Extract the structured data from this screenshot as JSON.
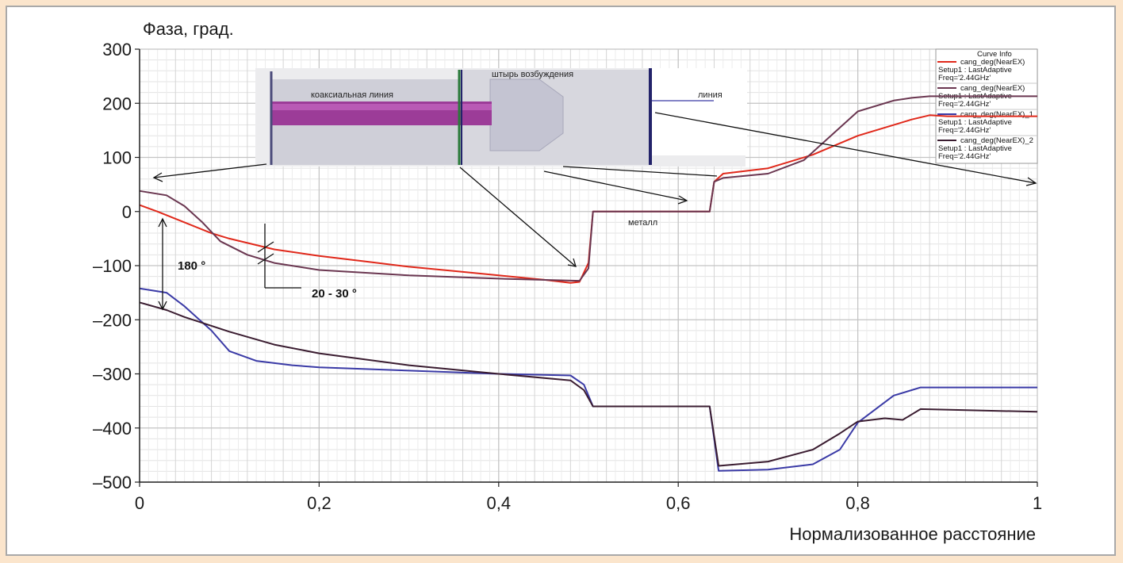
{
  "chart_data": {
    "type": "line",
    "ylabel": "Фаза, град.",
    "xlabel": "Нормализованное расстояние",
    "xlim": [
      0,
      1
    ],
    "ylim": [
      -500,
      300
    ],
    "xticks": [
      "0",
      "0,2",
      "0,4",
      "0,6",
      "0,8",
      "1"
    ],
    "yticks": [
      "300",
      "200",
      "100",
      "0",
      "–100",
      "–200",
      "–300",
      "–400",
      "–500"
    ],
    "xtick_values": [
      0,
      0.2,
      0.4,
      0.6,
      0.8,
      1
    ],
    "ytick_values": [
      300,
      200,
      100,
      0,
      -100,
      -200,
      -300,
      -400,
      -500
    ],
    "grid": true,
    "series": [
      {
        "color": "#e0281a",
        "x": [
          0,
          0.02,
          0.05,
          0.08,
          0.1,
          0.15,
          0.2,
          0.25,
          0.3,
          0.35,
          0.4,
          0.45,
          0.48,
          0.49,
          0.5,
          0.505,
          0.55,
          0.6,
          0.635,
          0.64,
          0.65,
          0.7,
          0.75,
          0.8,
          0.84,
          0.86,
          0.88,
          0.9,
          1.0
        ],
        "y": [
          12,
          0,
          -20,
          -40,
          -50,
          -70,
          -82,
          -92,
          -102,
          -110,
          -118,
          -126,
          -132,
          -130,
          -95,
          0,
          0,
          0,
          0,
          55,
          70,
          80,
          105,
          140,
          160,
          170,
          178,
          176,
          176
        ]
      },
      {
        "color": "#6a3650",
        "x": [
          0,
          0.03,
          0.05,
          0.07,
          0.09,
          0.12,
          0.15,
          0.2,
          0.3,
          0.4,
          0.49,
          0.5,
          0.505,
          0.55,
          0.6,
          0.635,
          0.64,
          0.65,
          0.7,
          0.74,
          0.77,
          0.8,
          0.84,
          0.86,
          0.88,
          0.9,
          1.0
        ],
        "y": [
          38,
          30,
          10,
          -20,
          -55,
          -80,
          -95,
          -108,
          -118,
          -124,
          -128,
          -105,
          0,
          0,
          0,
          0,
          55,
          62,
          70,
          95,
          140,
          185,
          205,
          210,
          213,
          213,
          213
        ]
      },
      {
        "color": "#3a3aa6",
        "x": [
          0,
          0.03,
          0.05,
          0.08,
          0.1,
          0.13,
          0.17,
          0.2,
          0.3,
          0.4,
          0.48,
          0.495,
          0.505,
          0.55,
          0.6,
          0.635,
          0.645,
          0.7,
          0.75,
          0.78,
          0.8,
          0.84,
          0.86,
          0.87,
          0.9,
          1.0
        ],
        "y": [
          -142,
          -150,
          -175,
          -220,
          -258,
          -276,
          -284,
          -288,
          -294,
          -300,
          -303,
          -320,
          -360,
          -360,
          -360,
          -360,
          -479,
          -477,
          -467,
          -440,
          -390,
          -340,
          -330,
          -325,
          -325,
          -325
        ]
      },
      {
        "color": "#3a1c30",
        "x": [
          0,
          0.03,
          0.05,
          0.1,
          0.15,
          0.2,
          0.3,
          0.4,
          0.48,
          0.495,
          0.505,
          0.55,
          0.6,
          0.635,
          0.645,
          0.7,
          0.75,
          0.78,
          0.8,
          0.83,
          0.85,
          0.87,
          1.0
        ],
        "y": [
          -168,
          -182,
          -195,
          -222,
          -246,
          -262,
          -284,
          -300,
          -312,
          -330,
          -360,
          -360,
          -360,
          -360,
          -470,
          -462,
          -440,
          -410,
          -388,
          -382,
          -385,
          -365,
          -370
        ]
      }
    ],
    "annotations": [
      "180 °",
      "20 - 30 °",
      "металл"
    ]
  },
  "inset": {
    "labels": {
      "coax": "коаксиальная линия",
      "pin": "штырь возбуждения",
      "line": "линия"
    },
    "curve_info": {
      "title": "Curve Info",
      "entries": [
        {
          "color": "#e0281a",
          "l1": "cang_deg(NearEX)",
          "l2": "Setup1 : LastAdaptive",
          "l3": "Freq='2.44GHz'"
        },
        {
          "color": "#6a3650",
          "l1": "cang_deg(NearEX)",
          "l2": "Setup1 : LastAdaptive",
          "l3": "Freq='2.44GHz'"
        },
        {
          "color": "#3a3aa6",
          "l1": "cang_deg(NearEX)_1",
          "l2": "Setup1 : LastAdaptive",
          "l3": "Freq='2.44GHz'"
        },
        {
          "color": "#3a1c30",
          "l1": "cang_deg(NearEX)_2",
          "l2": "Setup1 : LastAdaptive",
          "l3": "Freq='2.44GHz'"
        }
      ]
    }
  }
}
